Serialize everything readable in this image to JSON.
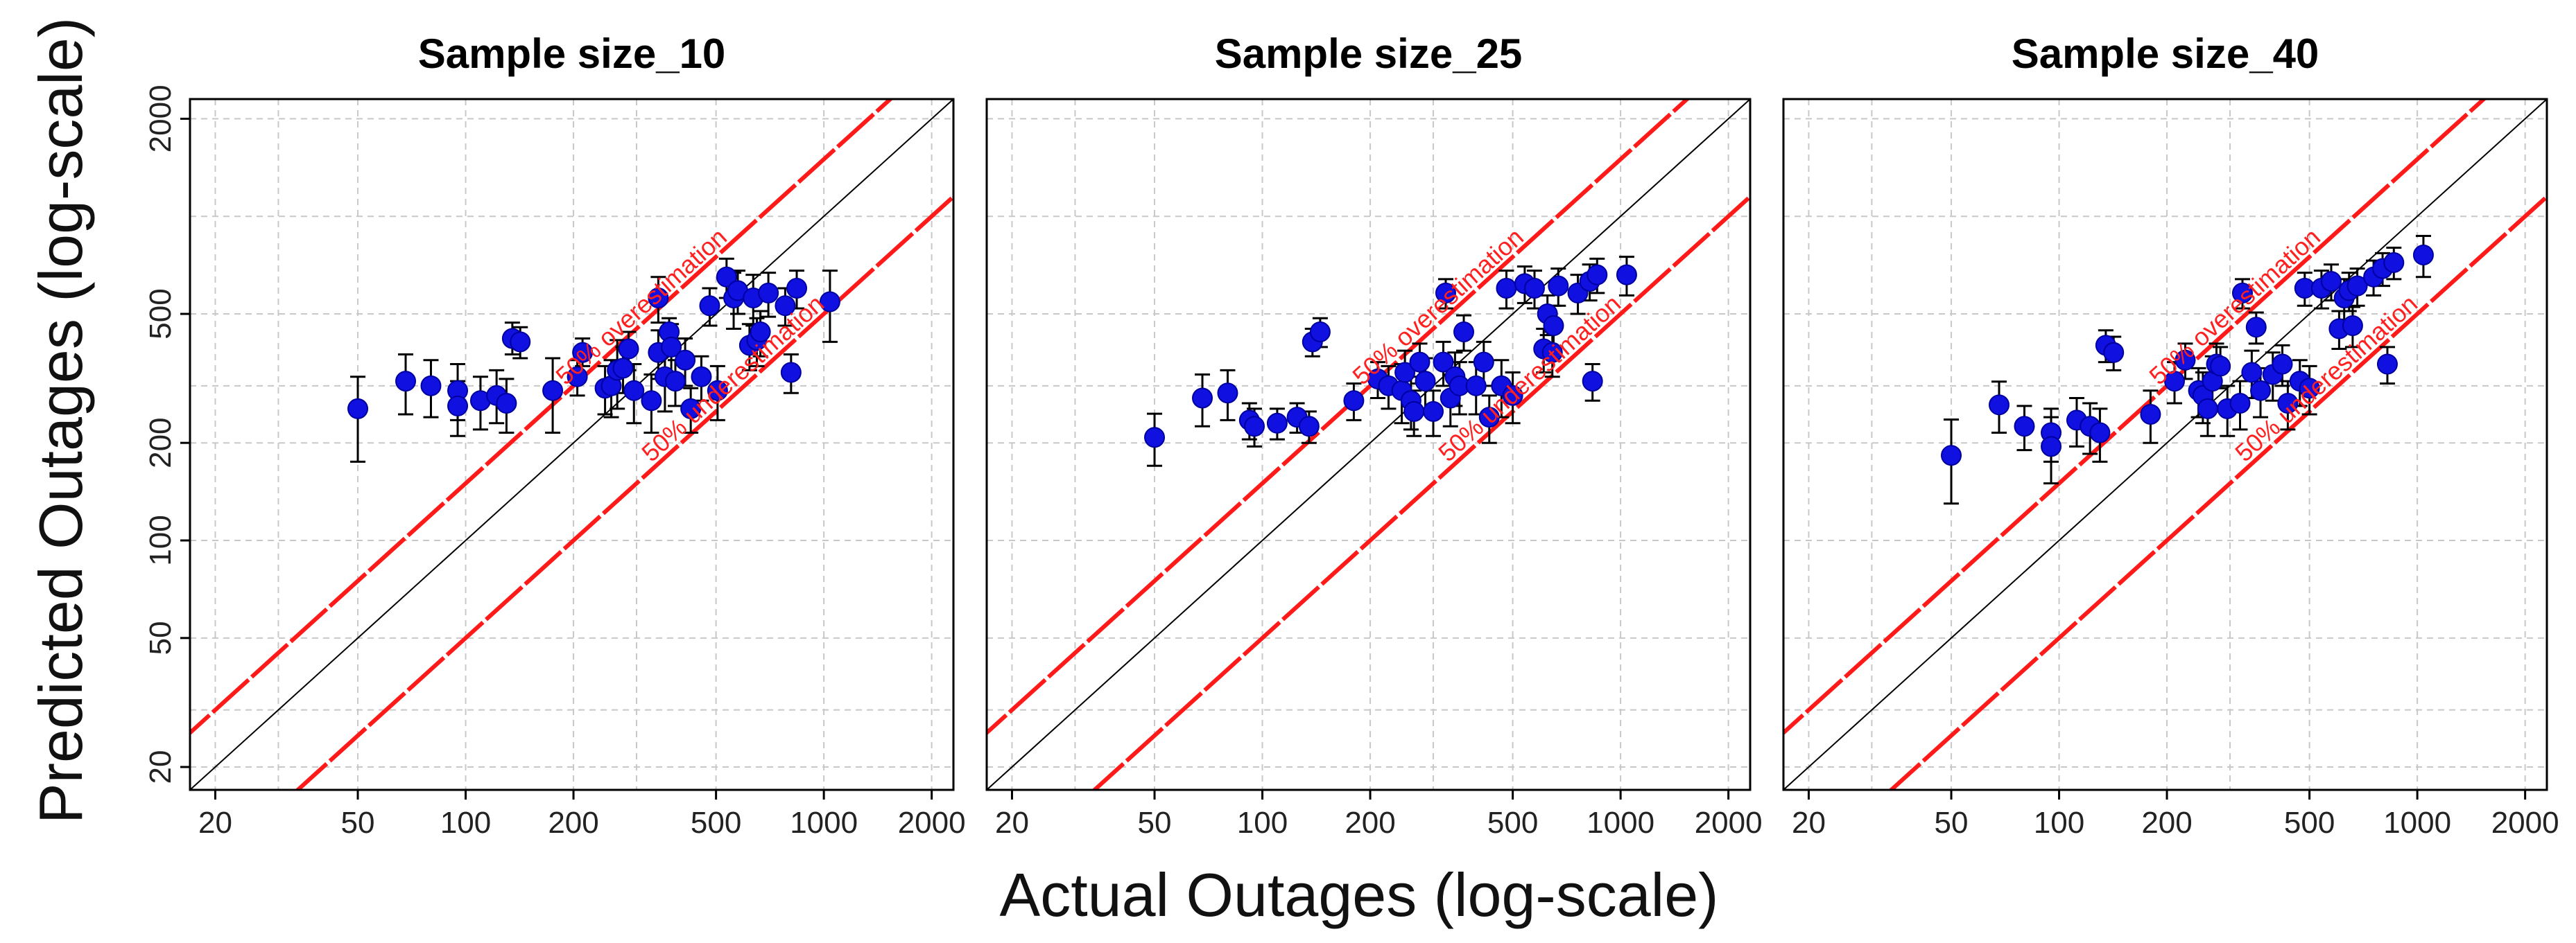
{
  "chart_data": {
    "type": "scatter",
    "xlabel": "Actual Outages (log-scale)",
    "ylabel": "Predicted Outages (log-scale)",
    "x_scale": "log",
    "y_scale": "log",
    "xlim": [
      17,
      2300
    ],
    "ylim": [
      17,
      2300
    ],
    "x_ticks": [
      20,
      50,
      100,
      200,
      500,
      1000,
      2000
    ],
    "y_ticks": [
      20,
      50,
      100,
      200,
      500,
      2000
    ],
    "grid": true,
    "colors": {
      "points": "#1010e0",
      "points_edge": "#0000a0",
      "error_bars": "#000000",
      "bounds": "#ff1a1a",
      "identity": "#000000",
      "grid": "#c8c8c8"
    },
    "reference_lines": [
      {
        "name": "identity",
        "label": "",
        "slope": 1.0
      },
      {
        "name": "overestimation",
        "label": "50% overestimation",
        "slope": 1.5
      },
      {
        "name": "underestimation",
        "label": "50% underestimation",
        "slope": 0.5
      }
    ],
    "panels": [
      {
        "title": "Sample size_10",
        "points": [
          [
            50,
            255,
            175,
            320
          ],
          [
            68,
            310,
            245,
            375
          ],
          [
            80,
            300,
            240,
            360
          ],
          [
            95,
            290,
            235,
            350
          ],
          [
            95,
            260,
            210,
            310
          ],
          [
            110,
            270,
            220,
            320
          ],
          [
            122,
            280,
            230,
            335
          ],
          [
            130,
            265,
            215,
            315
          ],
          [
            135,
            420,
            375,
            470
          ],
          [
            142,
            410,
            365,
            455
          ],
          [
            175,
            290,
            215,
            365
          ],
          [
            205,
            320,
            280,
            360
          ],
          [
            212,
            380,
            345,
            420
          ],
          [
            245,
            295,
            245,
            345
          ],
          [
            255,
            300,
            240,
            360
          ],
          [
            265,
            335,
            255,
            415
          ],
          [
            275,
            340,
            285,
            395
          ],
          [
            285,
            390,
            335,
            440
          ],
          [
            295,
            290,
            230,
            350
          ],
          [
            330,
            270,
            215,
            325
          ],
          [
            345,
            560,
            470,
            650
          ],
          [
            345,
            380,
            315,
            445
          ],
          [
            360,
            320,
            250,
            390
          ],
          [
            370,
            440,
            395,
            485
          ],
          [
            375,
            395,
            325,
            465
          ],
          [
            385,
            310,
            260,
            360
          ],
          [
            410,
            360,
            300,
            420
          ],
          [
            425,
            255,
            215,
            295
          ],
          [
            455,
            320,
            270,
            370
          ],
          [
            480,
            530,
            460,
            600
          ],
          [
            505,
            290,
            235,
            345
          ],
          [
            535,
            650,
            560,
            740
          ],
          [
            560,
            560,
            450,
            670
          ],
          [
            575,
            590,
            500,
            680
          ],
          [
            620,
            400,
            335,
            465
          ],
          [
            635,
            560,
            460,
            660
          ],
          [
            650,
            415,
            345,
            485
          ],
          [
            665,
            440,
            370,
            510
          ],
          [
            700,
            580,
            490,
            670
          ],
          [
            780,
            530,
            460,
            600
          ],
          [
            810,
            330,
            285,
            375
          ],
          [
            840,
            600,
            520,
            680
          ],
          [
            1040,
            545,
            410,
            680
          ]
        ]
      },
      {
        "title": "Sample size_25",
        "points": [
          [
            50,
            208,
            170,
            246
          ],
          [
            68,
            275,
            225,
            325
          ],
          [
            80,
            285,
            235,
            335
          ],
          [
            92,
            235,
            205,
            265
          ],
          [
            95,
            225,
            195,
            255
          ],
          [
            110,
            230,
            205,
            255
          ],
          [
            125,
            240,
            215,
            265
          ],
          [
            135,
            225,
            200,
            250
          ],
          [
            138,
            410,
            370,
            450
          ],
          [
            145,
            440,
            395,
            485
          ],
          [
            180,
            270,
            235,
            305
          ],
          [
            210,
            315,
            275,
            355
          ],
          [
            225,
            300,
            255,
            345
          ],
          [
            245,
            290,
            230,
            350
          ],
          [
            250,
            330,
            275,
            385
          ],
          [
            260,
            270,
            220,
            320
          ],
          [
            265,
            250,
            210,
            290
          ],
          [
            275,
            355,
            305,
            405
          ],
          [
            285,
            310,
            255,
            365
          ],
          [
            300,
            250,
            210,
            290
          ],
          [
            320,
            355,
            300,
            410
          ],
          [
            325,
            580,
            520,
            640
          ],
          [
            335,
            275,
            225,
            325
          ],
          [
            345,
            320,
            260,
            380
          ],
          [
            355,
            300,
            245,
            355
          ],
          [
            365,
            440,
            385,
            495
          ],
          [
            395,
            300,
            245,
            355
          ],
          [
            415,
            355,
            300,
            410
          ],
          [
            430,
            240,
            200,
            280
          ],
          [
            465,
            300,
            240,
            360
          ],
          [
            500,
            280,
            230,
            330
          ],
          [
            480,
            600,
            520,
            680
          ],
          [
            540,
            620,
            540,
            700
          ],
          [
            575,
            600,
            520,
            680
          ],
          [
            610,
            390,
            330,
            450
          ],
          [
            625,
            500,
            430,
            570
          ],
          [
            645,
            380,
            320,
            440
          ],
          [
            650,
            460,
            390,
            530
          ],
          [
            670,
            610,
            530,
            690
          ],
          [
            760,
            580,
            500,
            660
          ],
          [
            820,
            630,
            550,
            710
          ],
          [
            835,
            310,
            270,
            350
          ],
          [
            860,
            660,
            580,
            740
          ],
          [
            1040,
            660,
            570,
            750
          ]
        ]
      },
      {
        "title": "Sample size_40",
        "points": [
          [
            50,
            183,
            130,
            236
          ],
          [
            68,
            262,
            215,
            309
          ],
          [
            80,
            225,
            190,
            260
          ],
          [
            95,
            215,
            175,
            255
          ],
          [
            95,
            195,
            150,
            240
          ],
          [
            112,
            235,
            195,
            275
          ],
          [
            122,
            225,
            185,
            265
          ],
          [
            130,
            215,
            175,
            255
          ],
          [
            135,
            400,
            355,
            445
          ],
          [
            142,
            380,
            335,
            425
          ],
          [
            180,
            245,
            200,
            290
          ],
          [
            210,
            310,
            265,
            355
          ],
          [
            225,
            360,
            315,
            405
          ],
          [
            245,
            290,
            240,
            340
          ],
          [
            252,
            280,
            230,
            330
          ],
          [
            260,
            255,
            210,
            300
          ],
          [
            268,
            310,
            250,
            370
          ],
          [
            275,
            350,
            295,
            405
          ],
          [
            282,
            345,
            295,
            395
          ],
          [
            295,
            255,
            210,
            300
          ],
          [
            320,
            265,
            220,
            310
          ],
          [
            325,
            580,
            520,
            640
          ],
          [
            345,
            330,
            275,
            385
          ],
          [
            355,
            455,
            405,
            505
          ],
          [
            365,
            290,
            240,
            340
          ],
          [
            395,
            325,
            270,
            380
          ],
          [
            420,
            350,
            300,
            400
          ],
          [
            435,
            265,
            220,
            310
          ],
          [
            470,
            310,
            260,
            360
          ],
          [
            500,
            295,
            245,
            345
          ],
          [
            485,
            600,
            530,
            670
          ],
          [
            540,
            600,
            520,
            680
          ],
          [
            575,
            630,
            550,
            710
          ],
          [
            605,
            450,
            390,
            510
          ],
          [
            625,
            560,
            480,
            640
          ],
          [
            645,
            590,
            510,
            670
          ],
          [
            660,
            460,
            395,
            525
          ],
          [
            680,
            610,
            530,
            690
          ],
          [
            755,
            650,
            570,
            730
          ],
          [
            800,
            690,
            610,
            770
          ],
          [
            825,
            350,
            305,
            395
          ],
          [
            860,
            720,
            640,
            800
          ],
          [
            1040,
            760,
            650,
            870
          ]
        ]
      }
    ]
  }
}
